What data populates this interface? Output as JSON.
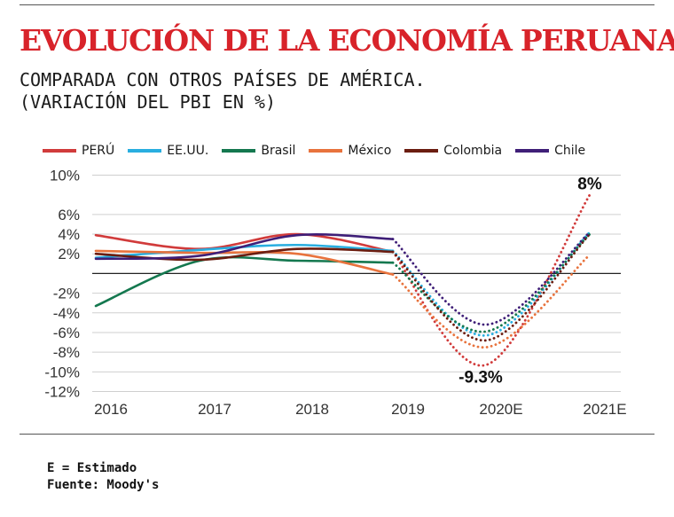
{
  "header": {
    "title": "EVOLUCIÓN DE LA ECONOMÍA PERUANA",
    "subtitle_line1": "COMPARADA CON OTROS PAÍSES DE AMÉRICA.",
    "subtitle_line2": "(VARIACIÓN DEL PBI EN %)"
  },
  "footnote": {
    "estimate": "E = Estimado",
    "source": "Fuente: Moody's"
  },
  "chart_data": {
    "type": "line",
    "categories": [
      "2016",
      "2017",
      "2018",
      "2019",
      "2020E",
      "2021E"
    ],
    "estimate_from_index": 3,
    "ylim": [
      -12,
      10
    ],
    "y_ticks": [
      10,
      6,
      4,
      2,
      -2,
      -4,
      -6,
      -8,
      -10,
      -12
    ],
    "y_tick_labels": [
      "10%",
      "6%",
      "4%",
      "2%",
      "-2%",
      "-4%",
      "-6%",
      "-8%",
      "-10%",
      "-12%"
    ],
    "grid": true,
    "legend_position": "top",
    "series": [
      {
        "name": "PERÚ",
        "color": "#d13b3b",
        "values": [
          3.9,
          2.5,
          4.0,
          2.2,
          -9.3,
          8.0
        ]
      },
      {
        "name": "EE.UU.",
        "color": "#29aee0",
        "values": [
          1.6,
          2.4,
          2.9,
          2.3,
          -6.3,
          4.2
        ]
      },
      {
        "name": "Brasil",
        "color": "#14784f",
        "values": [
          -3.3,
          1.3,
          1.3,
          1.1,
          -5.9,
          4.0
        ]
      },
      {
        "name": "México",
        "color": "#e8733d",
        "values": [
          2.3,
          2.1,
          2.0,
          -0.1,
          -7.5,
          1.9
        ]
      },
      {
        "name": "Colombia",
        "color": "#6b1d10",
        "values": [
          2.0,
          1.4,
          2.5,
          2.2,
          -6.8,
          4.0
        ]
      },
      {
        "name": "Chile",
        "color": "#3f1f78",
        "values": [
          1.5,
          1.8,
          3.9,
          3.5,
          -5.2,
          4.2
        ]
      }
    ],
    "annotations": [
      {
        "text": "8%",
        "series": "PERÚ",
        "category": "2021E",
        "value": 8.0
      },
      {
        "text": "-9.3%",
        "series": "PERÚ",
        "category": "2020E",
        "value": -9.3
      }
    ]
  }
}
